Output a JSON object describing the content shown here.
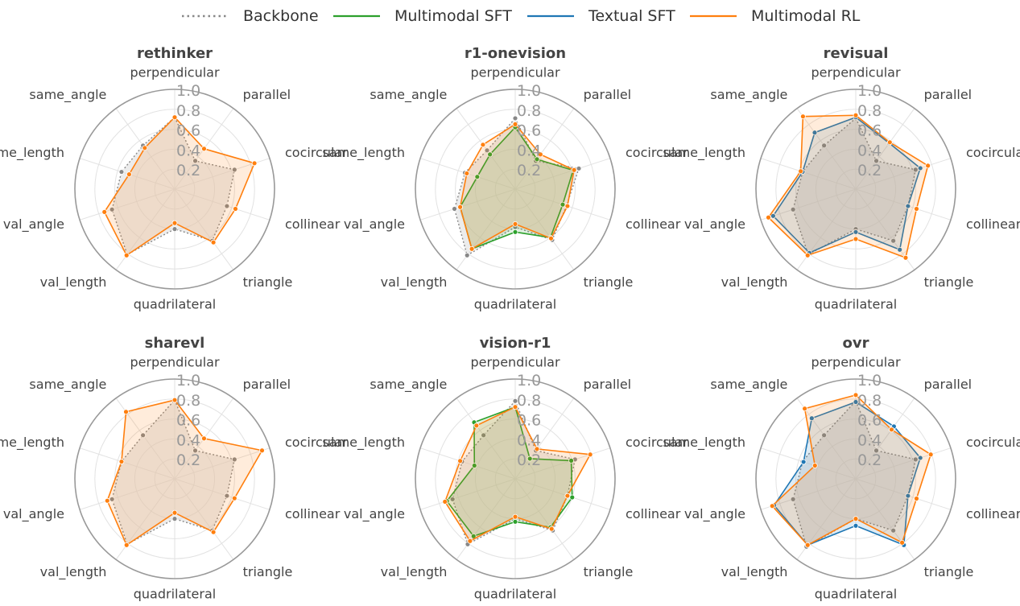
{
  "legend": [
    {
      "name": "Backbone",
      "color": "#888888",
      "dash": "dotted"
    },
    {
      "name": "Multimodal SFT",
      "color": "#2ca02c",
      "dash": "solid"
    },
    {
      "name": "Textual SFT",
      "color": "#1f77b4",
      "dash": "solid"
    },
    {
      "name": "Multimodal RL",
      "color": "#ff7f0e",
      "dash": "solid"
    }
  ],
  "chart_data": [
    {
      "type": "radar",
      "title": "rethinker",
      "categories": [
        "perpendicular",
        "parallel",
        "cocircular",
        "collinear",
        "triangle",
        "quadrilateral",
        "val_length",
        "val_angle",
        "same_length",
        "same_angle"
      ],
      "rticks": [
        "0.2",
        "0.4",
        "0.6",
        "0.8",
        "1.0"
      ],
      "rlim": [
        0,
        1
      ],
      "series": [
        {
          "name": "Backbone",
          "values": [
            0.72,
            0.35,
            0.63,
            0.55,
            0.64,
            0.4,
            0.81,
            0.66,
            0.56,
            0.54
          ]
        },
        {
          "name": "Multimodal RL",
          "values": [
            0.72,
            0.5,
            0.84,
            0.64,
            0.66,
            0.34,
            0.82,
            0.74,
            0.48,
            0.51
          ]
        }
      ]
    },
    {
      "type": "radar",
      "title": "r1-onevision",
      "categories": [
        "perpendicular",
        "parallel",
        "cocircular",
        "collinear",
        "triangle",
        "quadrilateral",
        "val_length",
        "val_angle",
        "same_length",
        "same_angle"
      ],
      "rticks": [
        "0.2",
        "0.4",
        "0.6",
        "0.8",
        "1.0"
      ],
      "rlim": [
        0,
        1
      ],
      "series": [
        {
          "name": "Backbone",
          "values": [
            0.71,
            0.35,
            0.67,
            0.54,
            0.63,
            0.38,
            0.82,
            0.64,
            0.53,
            0.48
          ]
        },
        {
          "name": "Multimodal SFT",
          "values": [
            0.62,
            0.37,
            0.61,
            0.5,
            0.6,
            0.43,
            0.74,
            0.58,
            0.4,
            0.43
          ]
        },
        {
          "name": "Multimodal RL",
          "values": [
            0.65,
            0.43,
            0.62,
            0.55,
            0.61,
            0.35,
            0.74,
            0.58,
            0.51,
            0.55
          ]
        }
      ]
    },
    {
      "type": "radar",
      "title": "revisual",
      "categories": [
        "perpendicular",
        "parallel",
        "cocircular",
        "collinear",
        "triangle",
        "quadrilateral",
        "val_length",
        "val_angle",
        "same_length",
        "same_angle"
      ],
      "rticks": [
        "0.2",
        "0.4",
        "0.6",
        "0.8",
        "1.0"
      ],
      "rlim": [
        0,
        1
      ],
      "series": [
        {
          "name": "Backbone",
          "values": [
            0.71,
            0.35,
            0.63,
            0.55,
            0.64,
            0.4,
            0.81,
            0.66,
            0.56,
            0.54
          ]
        },
        {
          "name": "Textual SFT",
          "values": [
            0.72,
            0.57,
            0.68,
            0.55,
            0.75,
            0.43,
            0.79,
            0.87,
            0.56,
            0.7
          ]
        },
        {
          "name": "Multimodal RL",
          "values": [
            0.74,
            0.58,
            0.76,
            0.64,
            0.85,
            0.5,
            0.82,
            0.92,
            0.58,
            0.9
          ]
        }
      ]
    },
    {
      "type": "radar",
      "title": "sharevl",
      "categories": [
        "perpendicular",
        "parallel",
        "cocircular",
        "collinear",
        "triangle",
        "quadrilateral",
        "val_length",
        "val_angle",
        "same_length",
        "same_angle"
      ],
      "rticks": [
        "0.2",
        "0.4",
        "0.6",
        "0.8",
        "1.0"
      ],
      "rlim": [
        0,
        1
      ],
      "series": [
        {
          "name": "Backbone",
          "values": [
            0.79,
            0.35,
            0.63,
            0.55,
            0.64,
            0.4,
            0.81,
            0.66,
            0.56,
            0.54
          ]
        },
        {
          "name": "Multimodal RL",
          "values": [
            0.79,
            0.5,
            0.92,
            0.63,
            0.66,
            0.34,
            0.82,
            0.71,
            0.56,
            0.83
          ]
        }
      ]
    },
    {
      "type": "radar",
      "title": "vision-r1",
      "categories": [
        "perpendicular",
        "parallel",
        "cocircular",
        "collinear",
        "triangle",
        "quadrilateral",
        "val_length",
        "val_angle",
        "same_length",
        "same_angle"
      ],
      "rticks": [
        "0.2",
        "0.4",
        "0.6",
        "0.8",
        "1.0"
      ],
      "rlim": [
        0,
        1
      ],
      "series": [
        {
          "name": "Backbone",
          "values": [
            0.78,
            0.35,
            0.63,
            0.55,
            0.64,
            0.4,
            0.81,
            0.66,
            0.56,
            0.54
          ]
        },
        {
          "name": "Multimodal SFT",
          "values": [
            0.72,
            0.25,
            0.59,
            0.6,
            0.6,
            0.43,
            0.71,
            0.72,
            0.43,
            0.7
          ]
        },
        {
          "name": "Multimodal RL",
          "values": [
            0.72,
            0.37,
            0.79,
            0.55,
            0.62,
            0.38,
            0.77,
            0.74,
            0.58,
            0.66
          ]
        }
      ]
    },
    {
      "type": "radar",
      "title": "ovr",
      "categories": [
        "perpendicular",
        "parallel",
        "cocircular",
        "collinear",
        "triangle",
        "quadrilateral",
        "val_length",
        "val_angle",
        "same_length",
        "same_angle"
      ],
      "rticks": [
        "0.2",
        "0.4",
        "0.6",
        "0.8",
        "1.0"
      ],
      "rlim": [
        0,
        1
      ],
      "series": [
        {
          "name": "Backbone",
          "values": [
            0.78,
            0.35,
            0.63,
            0.55,
            0.64,
            0.4,
            0.84,
            0.66,
            0.56,
            0.54
          ]
        },
        {
          "name": "Textual SFT",
          "values": [
            0.77,
            0.65,
            0.68,
            0.55,
            0.82,
            0.47,
            0.82,
            0.86,
            0.55,
            0.75
          ]
        },
        {
          "name": "Multimodal RL",
          "values": [
            0.84,
            0.61,
            0.79,
            0.64,
            0.79,
            0.4,
            0.82,
            0.88,
            0.43,
            0.87
          ]
        }
      ]
    }
  ]
}
